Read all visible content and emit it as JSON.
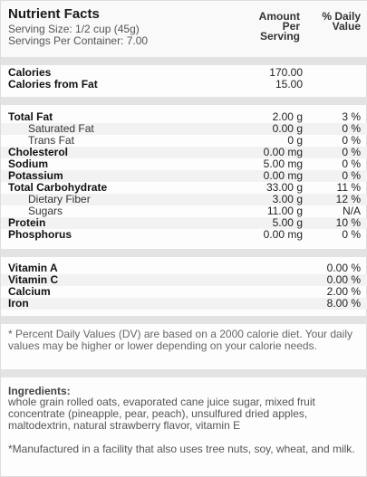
{
  "header": {
    "title": "Nutrient Facts",
    "serving_size": "Serving Size: 1/2 cup (45g)",
    "servings_per_container": "Servings Per Container: 7.00",
    "col_amount": [
      "Amount",
      "Per",
      "Serving"
    ],
    "col_dv": [
      "% Daily",
      "Value"
    ]
  },
  "calories": [
    {
      "label": "Calories",
      "amount": "170.00",
      "dv": ""
    },
    {
      "label": "Calories from Fat",
      "amount": "15.00",
      "dv": ""
    }
  ],
  "nutrients": [
    {
      "label": "Total Fat",
      "amount": "2.00 g",
      "dv": "3 %"
    },
    {
      "label": "Saturated Fat",
      "amount": "0.00 g",
      "dv": "0 %"
    },
    {
      "label": "Trans Fat",
      "amount": "0 g",
      "dv": "0 %"
    },
    {
      "label": "Cholesterol",
      "amount": "0.00 mg",
      "dv": "0 %"
    },
    {
      "label": "Sodium",
      "amount": "5.00 mg",
      "dv": "0 %"
    },
    {
      "label": "Potassium",
      "amount": "0.00 mg",
      "dv": "0 %"
    },
    {
      "label": "Total Carbohydrate",
      "amount": "33.00 g",
      "dv": "11 %"
    },
    {
      "label": "Dietary Fiber",
      "amount": "3.00 g",
      "dv": "12 %"
    },
    {
      "label": "Sugars",
      "amount": "11.00 g",
      "dv": "N/A"
    },
    {
      "label": "Protein",
      "amount": "5.00 g",
      "dv": "10 %"
    },
    {
      "label": "Phosphorus",
      "amount": "0.00 mg",
      "dv": "0 %"
    }
  ],
  "vitamins": [
    {
      "label": "Vitamin A",
      "dv": "0.00 %"
    },
    {
      "label": "Vitamin C",
      "dv": "0.00 %"
    },
    {
      "label": "Calcium",
      "dv": "2.00 %"
    },
    {
      "label": "Iron",
      "dv": "8.00 %"
    }
  ],
  "footnote": "* Percent Daily Values (DV) are based on a 2000 calorie diet. Your daily values may be higher or lower depending on your calorie needs.",
  "ingredients_title": "Ingredients:",
  "ingredients": "whole grain rolled oats, evaporated cane juice sugar, mixed fruit concentrate (pineapple, pear, peach), unsulfured dried apples, maltodextrin, natural strawberry flavor, vitamin E",
  "manufacturing_note": "*Manufactured in a facility that also uses tree nuts, soy, wheat, and milk."
}
